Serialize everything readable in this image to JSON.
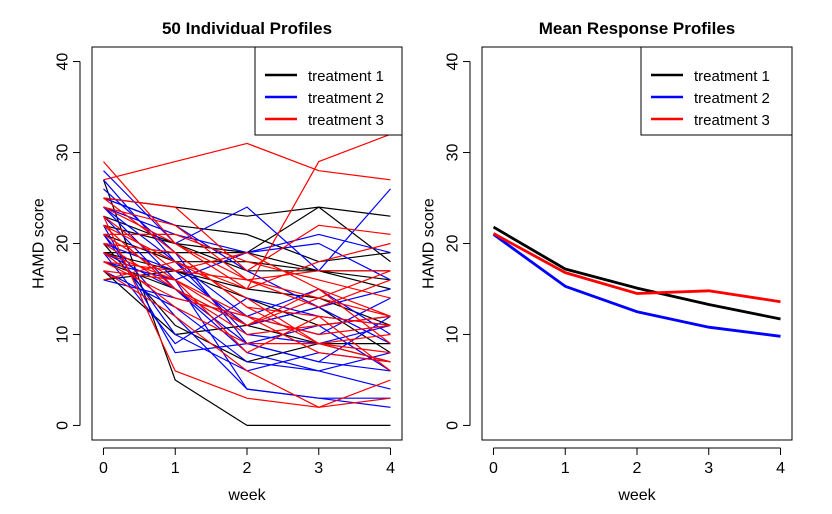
{
  "chart_data": [
    {
      "type": "line",
      "title": "50 Individual Profiles",
      "xlabel": "week",
      "ylabel": "HAMD score",
      "x": [
        0,
        1,
        2,
        3,
        4
      ],
      "xticks": [
        "0",
        "1",
        "2",
        "3",
        "4"
      ],
      "yticks": [
        "0",
        "10",
        "20",
        "30",
        "40"
      ],
      "xlim": [
        -0.16,
        4.16
      ],
      "ylim": [
        -1.6,
        41.6
      ],
      "grid": false,
      "legend": {
        "position": "top-right",
        "entries": [
          {
            "label": "treatment 1",
            "color": "#000000"
          },
          {
            "label": "treatment 2",
            "color": "#0000ff"
          },
          {
            "label": "treatment 3",
            "color": "#ff0000"
          }
        ]
      },
      "series": [
        {
          "group": 1,
          "color": "#000000",
          "values": [
            27,
            5,
            0,
            0,
            0
          ]
        },
        {
          "group": 1,
          "color": "#000000",
          "values": [
            25,
            24,
            23,
            24,
            23
          ]
        },
        {
          "group": 1,
          "color": "#000000",
          "values": [
            25,
            22,
            21,
            18,
            19
          ]
        },
        {
          "group": 1,
          "color": "#000000",
          "values": [
            23,
            20,
            19,
            17,
            16
          ]
        },
        {
          "group": 1,
          "color": "#000000",
          "values": [
            22,
            20,
            17,
            17,
            15
          ]
        },
        {
          "group": 1,
          "color": "#000000",
          "values": [
            21,
            18,
            18,
            17,
            17
          ]
        },
        {
          "group": 1,
          "color": "#000000",
          "values": [
            20,
            11,
            7,
            9,
            7
          ]
        },
        {
          "group": 1,
          "color": "#000000",
          "values": [
            19,
            17,
            14,
            11,
            12
          ]
        },
        {
          "group": 1,
          "color": "#000000",
          "values": [
            19,
            19,
            19,
            24,
            18
          ]
        },
        {
          "group": 1,
          "color": "#000000",
          "values": [
            18,
            15,
            11,
            9,
            9
          ]
        },
        {
          "group": 1,
          "color": "#000000",
          "values": [
            17,
            10,
            11,
            13,
            8
          ]
        },
        {
          "group": 1,
          "color": "#000000",
          "values": [
            16,
            17,
            15,
            14,
            11
          ]
        },
        {
          "group": 2,
          "color": "#0000ff",
          "values": [
            28,
            20,
            24,
            17,
            26
          ]
        },
        {
          "group": 2,
          "color": "#0000ff",
          "values": [
            27,
            18,
            10,
            9,
            11
          ]
        },
        {
          "group": 2,
          "color": "#0000ff",
          "values": [
            26,
            19,
            9,
            7,
            6
          ]
        },
        {
          "group": 2,
          "color": "#0000ff",
          "values": [
            25,
            22,
            17,
            13,
            15
          ]
        },
        {
          "group": 2,
          "color": "#0000ff",
          "values": [
            24,
            16,
            4,
            3,
            2
          ]
        },
        {
          "group": 2,
          "color": "#0000ff",
          "values": [
            24,
            21,
            19,
            20,
            16
          ]
        },
        {
          "group": 2,
          "color": "#0000ff",
          "values": [
            23,
            15,
            8,
            6,
            8
          ]
        },
        {
          "group": 2,
          "color": "#0000ff",
          "values": [
            22,
            8,
            9,
            7,
            12
          ]
        },
        {
          "group": 2,
          "color": "#0000ff",
          "values": [
            21,
            12,
            4,
            3,
            3
          ]
        },
        {
          "group": 2,
          "color": "#0000ff",
          "values": [
            20,
            17,
            11,
            13,
            9
          ]
        },
        {
          "group": 2,
          "color": "#0000ff",
          "values": [
            19,
            9,
            14,
            12,
            11
          ]
        },
        {
          "group": 2,
          "color": "#0000ff",
          "values": [
            18,
            16,
            19,
            21,
            19
          ]
        },
        {
          "group": 2,
          "color": "#0000ff",
          "values": [
            17,
            13,
            7,
            6,
            4
          ]
        },
        {
          "group": 2,
          "color": "#0000ff",
          "values": [
            16,
            14,
            12,
            10,
            14
          ]
        },
        {
          "group": 2,
          "color": "#0000ff",
          "values": [
            24,
            18,
            12,
            15,
            10
          ]
        },
        {
          "group": 2,
          "color": "#0000ff",
          "values": [
            21,
            10,
            6,
            8,
            7
          ]
        },
        {
          "group": 2,
          "color": "#0000ff",
          "values": [
            19,
            15,
            9,
            11,
            6
          ]
        },
        {
          "group": 3,
          "color": "#ff0000",
          "values": [
            29,
            20,
            15,
            29,
            32
          ]
        },
        {
          "group": 3,
          "color": "#ff0000",
          "values": [
            27,
            29,
            31,
            28,
            27
          ]
        },
        {
          "group": 3,
          "color": "#ff0000",
          "values": [
            25,
            24,
            17,
            22,
            21
          ]
        },
        {
          "group": 3,
          "color": "#ff0000",
          "values": [
            24,
            20,
            16,
            13,
            16
          ]
        },
        {
          "group": 3,
          "color": "#ff0000",
          "values": [
            23,
            6,
            3,
            2,
            5
          ]
        },
        {
          "group": 3,
          "color": "#ff0000",
          "values": [
            23,
            17,
            19,
            15,
            12
          ]
        },
        {
          "group": 3,
          "color": "#ff0000",
          "values": [
            22,
            15,
            10,
            11,
            12
          ]
        },
        {
          "group": 3,
          "color": "#ff0000",
          "values": [
            21,
            21,
            18,
            16,
            14
          ]
        },
        {
          "group": 3,
          "color": "#ff0000",
          "values": [
            20,
            19,
            13,
            9,
            10
          ]
        },
        {
          "group": 3,
          "color": "#ff0000",
          "values": [
            19,
            16,
            8,
            12,
            6
          ]
        },
        {
          "group": 3,
          "color": "#ff0000",
          "values": [
            18,
            14,
            12,
            10,
            11
          ]
        },
        {
          "group": 3,
          "color": "#ff0000",
          "values": [
            17,
            16,
            11,
            14,
            17
          ]
        },
        {
          "group": 3,
          "color": "#ff0000",
          "values": [
            17,
            12,
            6,
            2,
            3
          ]
        },
        {
          "group": 3,
          "color": "#ff0000",
          "values": [
            16,
            18,
            15,
            18,
            20
          ]
        },
        {
          "group": 3,
          "color": "#ff0000",
          "values": [
            22,
            18,
            14,
            9,
            8
          ]
        },
        {
          "group": 3,
          "color": "#ff0000",
          "values": [
            20,
            15,
            11,
            15,
            9
          ]
        },
        {
          "group": 3,
          "color": "#ff0000",
          "values": [
            18,
            17,
            16,
            14,
            12
          ]
        },
        {
          "group": 3,
          "color": "#ff0000",
          "values": [
            25,
            19,
            13,
            12,
            11
          ]
        },
        {
          "group": 3,
          "color": "#ff0000",
          "values": [
            19,
            13,
            9,
            9,
            7
          ]
        },
        {
          "group": 3,
          "color": "#ff0000",
          "values": [
            21,
            16,
            12,
            8,
            7
          ]
        },
        {
          "group": 3,
          "color": "#ff0000",
          "values": [
            24,
            22,
            16,
            17,
            17
          ]
        }
      ]
    },
    {
      "type": "line",
      "title": "Mean Response Profiles",
      "xlabel": "week",
      "ylabel": "HAMD score",
      "x": [
        0,
        1,
        2,
        3,
        4
      ],
      "xticks": [
        "0",
        "1",
        "2",
        "3",
        "4"
      ],
      "yticks": [
        "0",
        "10",
        "20",
        "30",
        "40"
      ],
      "xlim": [
        -0.16,
        4.16
      ],
      "ylim": [
        -1.6,
        41.6
      ],
      "grid": false,
      "legend": {
        "position": "top-right",
        "entries": [
          {
            "label": "treatment 1",
            "color": "#000000"
          },
          {
            "label": "treatment 2",
            "color": "#0000ff"
          },
          {
            "label": "treatment 3",
            "color": "#ff0000"
          }
        ]
      },
      "series": [
        {
          "name": "treatment 1",
          "color": "#000000",
          "values": [
            21.8,
            17.2,
            15.1,
            13.3,
            11.7
          ]
        },
        {
          "name": "treatment 2",
          "color": "#0000ff",
          "values": [
            21.0,
            15.3,
            12.5,
            10.8,
            9.8
          ]
        },
        {
          "name": "treatment 3",
          "color": "#ff0000",
          "values": [
            21.1,
            16.8,
            14.5,
            14.8,
            13.6
          ]
        }
      ]
    }
  ]
}
